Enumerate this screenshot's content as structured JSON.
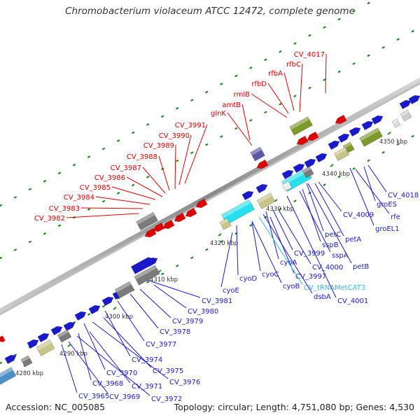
{
  "title": "Chromobacterium violaceum ATCC 12472, complete genome",
  "footer": {
    "accession": "Accession: NC_005085",
    "summary": "Topology: circular; Length: 4,751,080 bp; Genes: 4,530"
  },
  "colors": {
    "forward_gene": "#1a1acc",
    "reverse_gene": "#dd0000",
    "operon_olive": "#7f9a2c",
    "operon_tan": "#c8c48a",
    "operon_gray": "#7a7a7a",
    "operon_cyan": "#27e0ee",
    "operon_purple": "#5a5aa8",
    "trna_label": "#33bbdd"
  },
  "ticks": [
    {
      "label": "4280 kbp"
    },
    {
      "label": "4290 kbp"
    },
    {
      "label": "4300 kbp"
    },
    {
      "label": "4310 kbp"
    },
    {
      "label": "4320 kbp"
    },
    {
      "label": "4330 kbp"
    },
    {
      "label": "4340 kbp"
    },
    {
      "label": "4350 kbp"
    }
  ],
  "labels_reverse": [
    "CV_4017",
    "rfbC",
    "rfbA",
    "rfbD",
    "rmlB",
    "amtB",
    "glnK",
    "CV_3991",
    "CV_3990",
    "CV_3989",
    "CV_3988",
    "CV_3987",
    "CV_3986",
    "CV_3985",
    "CV_3984",
    "CV_3983",
    "CV_3982"
  ],
  "labels_forward": [
    "CV_4018",
    "groES",
    "rfe",
    "groEL1",
    "CV_4009",
    "petC",
    "petA",
    "sspB",
    "sspA",
    "petB",
    "CV_3999",
    "cyoA",
    "CV_4000",
    "cyoC",
    "CV_3997",
    "cyoD",
    "cyoB",
    "CV_tRNAMetCAT3",
    "dsbA",
    "CV_4001",
    "cyoE",
    "CV_3981",
    "CV_3980",
    "CV_3979",
    "CV_3978",
    "CV_3977",
    "CV_3974",
    "CV_3975",
    "CV_3970",
    "CV_3976",
    "CV_3968",
    "CV_3971",
    "CV_3965",
    "CV_3969",
    "CV_3972"
  ]
}
